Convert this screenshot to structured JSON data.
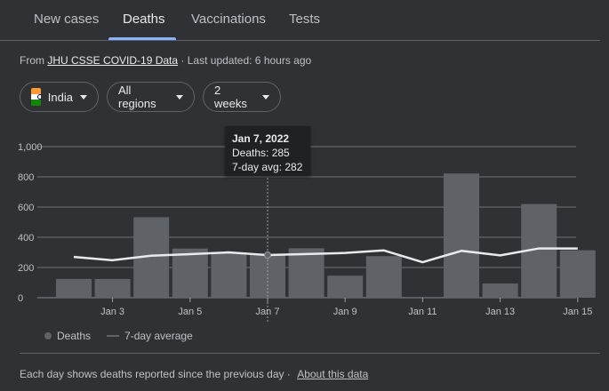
{
  "tabs": [
    {
      "label": "New cases"
    },
    {
      "label": "Deaths"
    },
    {
      "label": "Vaccinations"
    },
    {
      "label": "Tests"
    }
  ],
  "source": {
    "prefix": "From",
    "link": "JHU CSSE COVID-19 Data",
    "sep": "·",
    "updated": "Last updated: 6 hours ago"
  },
  "filters": {
    "country": "India",
    "region": "All regions",
    "range": "2 weeks"
  },
  "tooltip": {
    "date": "Jan 7, 2022",
    "deaths": "Deaths: 285",
    "avg": "7-day avg: 282"
  },
  "legend": {
    "deaths": "Deaths",
    "avg": "7-day average"
  },
  "footer": {
    "text": "Each day shows deaths reported since the previous day",
    "sep": "·",
    "link": "About this data"
  },
  "colors": {
    "bar": "#5f6368",
    "avg_line": "#e8eaed",
    "grid": "#9aa0a6"
  },
  "chart_data": {
    "type": "bar",
    "title": "",
    "xlabel": "",
    "ylabel": "",
    "ylim": [
      0,
      1000
    ],
    "yticks": [
      "0",
      "200",
      "400",
      "600",
      "800",
      "1,000"
    ],
    "ytick_values": [
      0,
      200,
      400,
      600,
      800,
      1000
    ],
    "categories": [
      "Jan 2",
      "Jan 3",
      "Jan 4",
      "Jan 5",
      "Jan 6",
      "Jan 7",
      "Jan 8",
      "Jan 9",
      "Jan 10",
      "Jan 11",
      "Jan 12",
      "Jan 13",
      "Jan 14",
      "Jan 15"
    ],
    "xtick_labels": [
      "Jan 3",
      "Jan 5",
      "Jan 7",
      "Jan 9",
      "Jan 11",
      "Jan 13",
      "Jan 15"
    ],
    "series": [
      {
        "name": "Deaths",
        "values": [
          124,
          124,
          533,
          325,
          293,
          285,
          327,
          146,
          275,
          0,
          822,
          94,
          620,
          314
        ]
      },
      {
        "name": "7-day average",
        "values": [
          270,
          248,
          278,
          288,
          300,
          282,
          289,
          296,
          313,
          235,
          310,
          280,
          326,
          326
        ]
      }
    ]
  }
}
